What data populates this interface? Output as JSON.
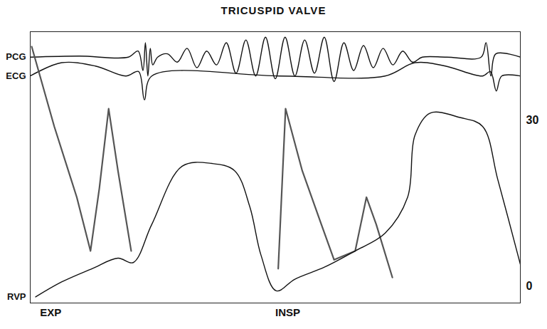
{
  "chart_data": {
    "type": "line",
    "title": "TRICUSPID VALVE",
    "xlim": [
      0,
      100
    ],
    "ylim": [
      -3,
      46
    ],
    "yticks": [
      0,
      30
    ],
    "tick_labels": "y",
    "grid": false,
    "annotations": [
      {
        "text": "EXP",
        "x": 2
      },
      {
        "text": "INSP",
        "x": 50
      }
    ],
    "series": [
      {
        "name": "PCG",
        "color": "#111111",
        "x": [
          0,
          10,
          20,
          22,
          23,
          23.5,
          24,
          24.5,
          25,
          26,
          28,
          30,
          32,
          34,
          36,
          38,
          40,
          42,
          44,
          46,
          48,
          50,
          52,
          54,
          56,
          58,
          60,
          62,
          64,
          66,
          68,
          70,
          72,
          74,
          76,
          78,
          80,
          85,
          92,
          93,
          94,
          95,
          100
        ],
        "values": [
          41.4,
          41.6,
          41.4,
          42.5,
          39,
          44,
          38,
          43,
          40,
          41.4,
          42,
          40.5,
          43,
          39.5,
          42.5,
          40,
          44,
          38.5,
          44.5,
          38,
          45,
          37.5,
          45,
          38,
          44.5,
          38.5,
          45,
          37,
          44,
          39,
          43.5,
          39.5,
          43,
          40,
          42.5,
          40.5,
          41.4,
          41.4,
          41.4,
          44,
          38,
          42,
          41.4
        ]
      },
      {
        "name": "ECG",
        "color": "#111111",
        "x": [
          0,
          6.4,
          13.3,
          19.5,
          22.1,
          23.3,
          24.8,
          50.9,
          72.4,
          78.5,
          84.7,
          92.3,
          93.9,
          95.1,
          96.2,
          100
        ],
        "values": [
          38.0,
          40.4,
          39.8,
          38.0,
          38.8,
          33.7,
          38.0,
          38.0,
          38.0,
          40.4,
          39.8,
          38.0,
          38.8,
          35.3,
          38.0,
          38.0
        ]
      },
      {
        "color": "#555555",
        "x": [
          0.3,
          4.9,
          9.5,
          12.3,
          14.1,
          16.0,
          17.9,
          20.6,
          35,
          50.6,
          52.1,
          55.5,
          59.4,
          62.0,
          66.3,
          68.6,
          70.6,
          73.9
        ],
        "values": [
          43.3,
          28.9,
          16.1,
          6.4,
          17.7,
          32.1,
          20.9,
          6.4,
          null,
          3.2,
          32.1,
          20.9,
          11.2,
          4.8,
          6.4,
          16.1,
          11.2,
          1.6
        ]
      },
      {
        "name": "RVP",
        "color": "#111111",
        "x": [
          1.1,
          6.4,
          12.6,
          17.9,
          21.0,
          24.8,
          31.0,
          37.1,
          41.7,
          44.8,
          47.1,
          50.2,
          54.0,
          60.1,
          66.3,
          72.4,
          77.0,
          78.5,
          81.6,
          87.7,
          92.3,
          95.4,
          100
        ],
        "values": [
          -1.9,
          0.8,
          3.2,
          5.1,
          4.3,
          11.2,
          21.7,
          22.2,
          20.9,
          14.4,
          5.6,
          -0.8,
          1.3,
          3.5,
          6.4,
          9.6,
          16.1,
          27.3,
          31.3,
          30.5,
          28.9,
          19.3,
          4.0
        ]
      }
    ]
  }
}
